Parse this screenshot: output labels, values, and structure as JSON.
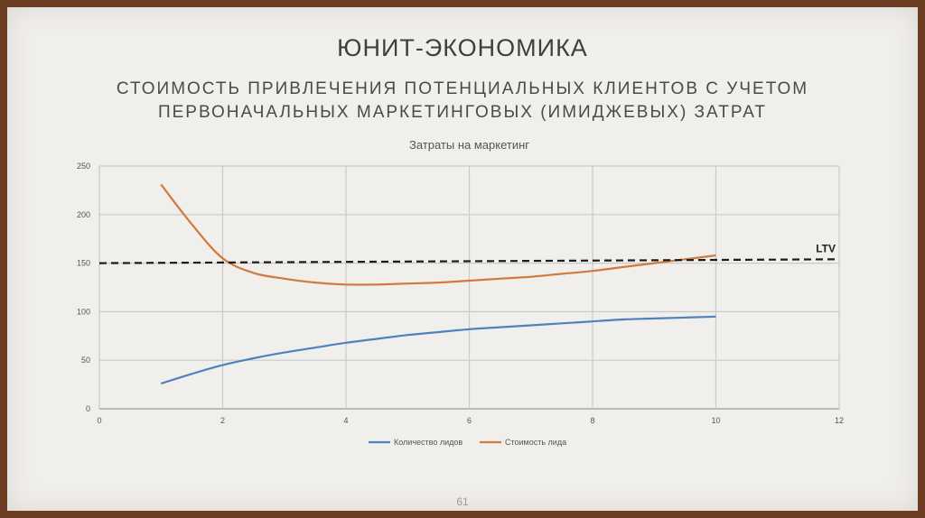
{
  "slide": {
    "title": "ЮНИТ-ЭКОНОМИКА",
    "subtitle_line1": "СТОИМОСТЬ ПРИВЛЕЧЕНИЯ ПОТЕНЦИАЛЬНЫХ КЛИЕНТОВ С УЧЕТОМ",
    "subtitle_line2": "ПЕРВОНАЧАЛЬНЫХ МАРКЕТИНГОВЫХ (ИМИДЖЕВЫХ) ЗАТРАТ",
    "page_number": "61"
  },
  "chart_data": {
    "type": "line",
    "title": "Затраты на маркетинг",
    "xlabel": "",
    "ylabel": "",
    "xlim": [
      0,
      12
    ],
    "ylim": [
      0,
      250
    ],
    "x_ticks": [
      0,
      2,
      4,
      6,
      8,
      10,
      12
    ],
    "y_ticks": [
      0,
      50,
      100,
      150,
      200,
      250
    ],
    "grid": true,
    "legend_position": "bottom",
    "series": [
      {
        "name": "Количество лидов",
        "color": "#4f81bd",
        "x": [
          1,
          1.5,
          2,
          2.5,
          3,
          3.5,
          4,
          4.5,
          5,
          5.5,
          6,
          6.5,
          7,
          7.5,
          8,
          8.5,
          9,
          9.5,
          10
        ],
        "y": [
          26,
          36,
          45,
          52,
          58,
          63,
          68,
          72,
          76,
          79,
          82,
          84,
          86,
          88,
          90,
          92,
          93,
          94,
          95
        ]
      },
      {
        "name": "Стоимость лида",
        "color": "#d07a3e",
        "x": [
          1,
          1.5,
          2,
          2.5,
          3,
          3.5,
          4,
          4.5,
          5,
          5.5,
          6,
          6.5,
          7,
          7.5,
          8,
          8.5,
          9,
          9.5,
          10
        ],
        "y": [
          231,
          190,
          155,
          140,
          134,
          130,
          128,
          128,
          129,
          130,
          132,
          134,
          136,
          139,
          142,
          146,
          150,
          154,
          158
        ]
      }
    ],
    "reference_line": {
      "label": "LTV",
      "color": "#1a1a1a",
      "x": [
        0,
        12
      ],
      "y": [
        150,
        154
      ]
    }
  }
}
